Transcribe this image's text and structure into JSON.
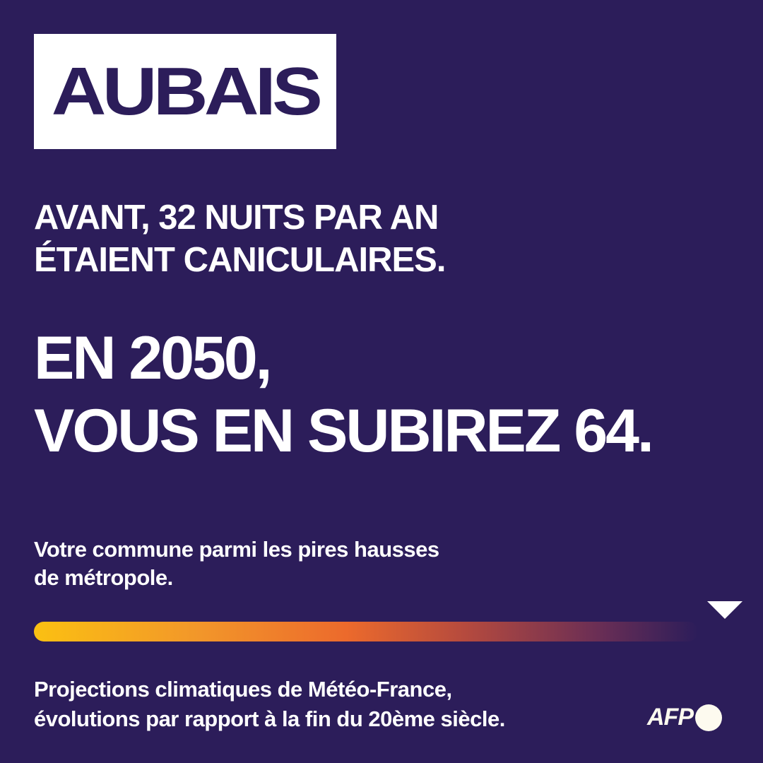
{
  "commune": "AUBAIS",
  "intro": {
    "line1": "AVANT, 32 NUITS PAR AN",
    "line2": "ÉTAIENT CANICULAIRES."
  },
  "headline": {
    "line1": "EN 2050,",
    "line2": "VOUS EN SUBIREZ 64."
  },
  "subtitle": {
    "line1": "Votre commune parmi les pires hausses",
    "line2": "de métropole."
  },
  "scale": {
    "position_percent": 100,
    "colors": [
      "#fbc012",
      "#ec6a2c",
      "#2c1d5a"
    ]
  },
  "footer": {
    "line1": "Projections climatiques de Météo-France,",
    "line2": "évolutions par rapport à la fin du 20ème siècle."
  },
  "logo": {
    "text": "AFP"
  },
  "colors": {
    "background": "#2c1d5a",
    "text": "#ffffff"
  }
}
